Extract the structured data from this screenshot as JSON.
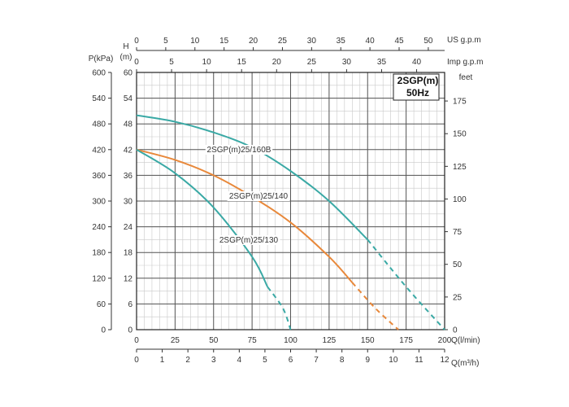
{
  "chart_data": {
    "type": "line",
    "title": "2SGP(m)",
    "subtitle": "50Hz",
    "grid": true,
    "x": {
      "label": "Q(l/min)",
      "range": [
        0,
        200
      ],
      "ticks": [
        "0",
        "25",
        "50",
        "75",
        "100",
        "125",
        "150",
        "175",
        "200"
      ]
    },
    "x_m3h": {
      "label": "Q(m³/h)",
      "range": [
        0,
        12
      ],
      "ticks": [
        "0",
        "1",
        "2",
        "3",
        "4",
        "5",
        "6",
        "7",
        "8",
        "9",
        "10",
        "11",
        "12"
      ]
    },
    "x_us": {
      "label": "US  g.p.m",
      "range": [
        0,
        52.8
      ],
      "ticks": [
        "0",
        "5",
        "10",
        "15",
        "20",
        "25",
        "30",
        "35",
        "40",
        "45",
        "50"
      ]
    },
    "x_imp": {
      "label": "Imp  g.p.m",
      "range": [
        0,
        44
      ],
      "ticks": [
        "0",
        "5",
        "10",
        "15",
        "20",
        "25",
        "30",
        "35",
        "40"
      ]
    },
    "y_m": {
      "label_top": "H",
      "label_bottom": "(m)",
      "range": [
        0,
        60
      ],
      "ticks": [
        "0",
        "6",
        "12",
        "18",
        "24",
        "30",
        "36",
        "42",
        "48",
        "54",
        "60"
      ]
    },
    "y_kpa": {
      "label": "P(kPa)",
      "range": [
        0,
        600
      ],
      "ticks": [
        "0",
        "60",
        "120",
        "180",
        "240",
        "300",
        "360",
        "420",
        "480",
        "540",
        "600"
      ]
    },
    "y_feet": {
      "label": "feet",
      "range": [
        0,
        196.85
      ],
      "ticks": [
        "0",
        "25",
        "50",
        "75",
        "100",
        "125",
        "150",
        "175"
      ]
    },
    "series": [
      {
        "name": "2SGP(m)25/160B",
        "color": "#3aa9a5",
        "solid": [
          [
            0,
            50
          ],
          [
            25,
            48.5
          ],
          [
            50,
            46
          ],
          [
            75,
            42.5
          ],
          [
            100,
            37
          ],
          [
            125,
            30
          ],
          [
            150,
            21
          ]
        ],
        "dashed": [
          [
            150,
            21
          ],
          [
            175,
            10
          ],
          [
            200,
            0
          ]
        ]
      },
      {
        "name": "2SGP(m)25/140",
        "color": "#e8883a",
        "solid": [
          [
            0,
            42
          ],
          [
            25,
            39.6
          ],
          [
            50,
            36
          ],
          [
            75,
            31
          ],
          [
            100,
            25
          ],
          [
            125,
            17
          ],
          [
            140,
            11
          ]
        ],
        "dashed": [
          [
            140,
            11
          ],
          [
            155,
            5
          ],
          [
            170,
            0
          ]
        ]
      },
      {
        "name": "2SGP(m)25/130",
        "color": "#3aa9a5",
        "solid": [
          [
            0,
            42
          ],
          [
            25,
            36.5
          ],
          [
            50,
            28.5
          ],
          [
            75,
            17
          ],
          [
            85,
            10
          ]
        ],
        "dashed": [
          [
            85,
            10
          ],
          [
            95,
            5
          ],
          [
            100,
            0
          ]
        ]
      }
    ]
  }
}
